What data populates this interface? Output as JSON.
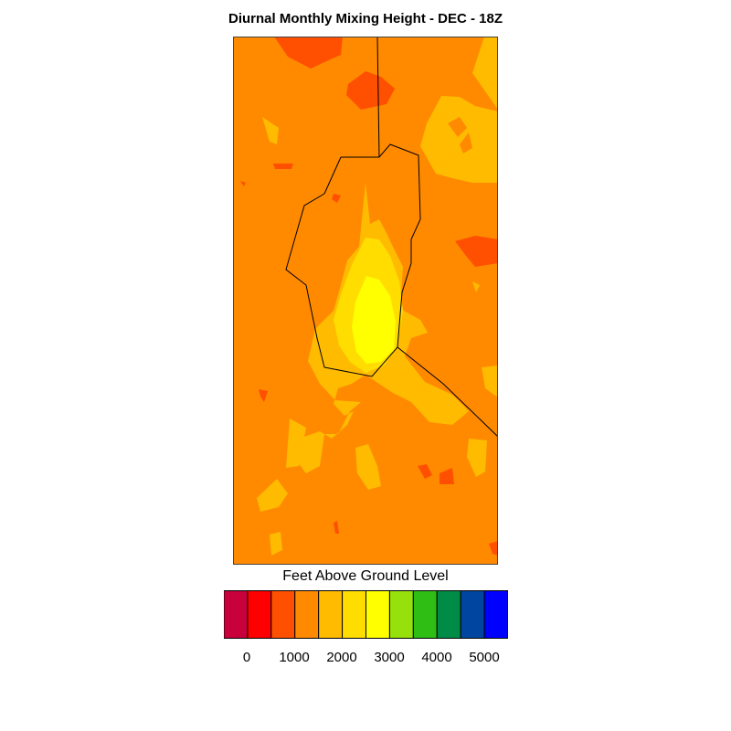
{
  "title": "Diurnal Monthly Mixing Height - DEC - 18Z",
  "legend": {
    "title": "Feet Above Ground Level",
    "colors": [
      "#c8003c",
      "#ff0000",
      "#ff4f00",
      "#ff8a00",
      "#ffbb00",
      "#ffdd00",
      "#ffff00",
      "#96e00c",
      "#2ebe14",
      "#008c46",
      "#0046a0",
      "#0000ff"
    ],
    "tick_labels": [
      "0",
      "1000",
      "2000",
      "3000",
      "4000",
      "5000"
    ]
  },
  "map": {
    "background_color": "#ff8a00",
    "boundary_color": "#000000",
    "level_colors": {
      "red_orange": "#ff4f00",
      "orange": "#ff8a00",
      "amber": "#ffbb00",
      "gold": "#ffdd00",
      "yellow": "#ffff00"
    }
  }
}
